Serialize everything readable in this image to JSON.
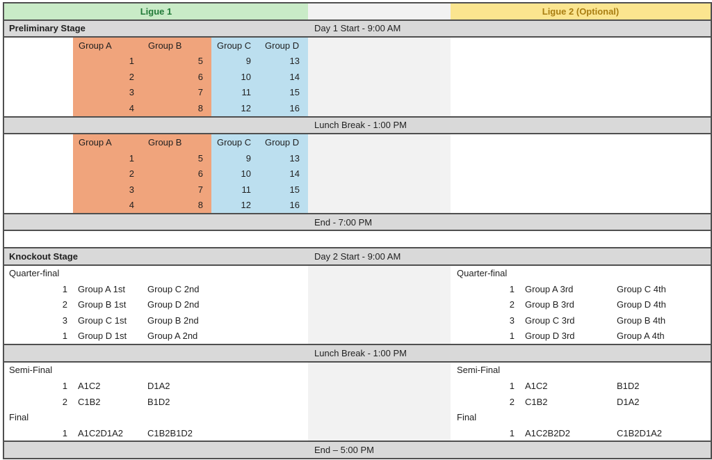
{
  "league_headers": {
    "ligue1": "Ligue 1",
    "ligue2": "Ligue 2 (Optional)"
  },
  "colors": {
    "ligue1_bg": "#C9EBC7",
    "ligue1_text": "#217A38",
    "ligue2_bg": "#FBE58F",
    "ligue2_text": "#A97E12",
    "group_ab_bg": "#F0A47C",
    "group_cd_bg": "#BCDFEF",
    "separator_row_bg": "#D9D9D9",
    "middle_band_bg": "#F2F2F2"
  },
  "schedule": {
    "day1": {
      "stage": "Preliminary Stage",
      "start": "Day 1 Start - 9:00 AM",
      "lunch": "Lunch Break - 1:00 PM",
      "end": "End - 7:00 PM",
      "groups": [
        "Group A",
        "Group B",
        "Group C",
        "Group D"
      ],
      "rows": [
        [
          "1",
          "5",
          "9",
          "13"
        ],
        [
          "2",
          "6",
          "10",
          "14"
        ],
        [
          "3",
          "7",
          "11",
          "15"
        ],
        [
          "4",
          "8",
          "12",
          "16"
        ]
      ]
    },
    "day2": {
      "stage": "Knockout Stage",
      "start": "Day 2 Start - 9:00 AM",
      "lunch": "Lunch Break - 1:00 PM",
      "end": "End – 5:00 PM",
      "ligue1": {
        "quarterfinal_label": "Quarter-final",
        "quarterfinals": [
          {
            "n": "1",
            "home": "Group A 1st",
            "away": "Group C 2nd"
          },
          {
            "n": "2",
            "home": "Group B 1st",
            "away": "Group D 2nd"
          },
          {
            "n": "3",
            "home": "Group C 1st",
            "away": "Group B 2nd"
          },
          {
            "n": "1",
            "home": "Group D 1st",
            "away": "Group A 2nd"
          }
        ],
        "semifinal_label": "Semi-Final",
        "semifinals": [
          {
            "n": "1",
            "home": "A1C2",
            "away": "D1A2"
          },
          {
            "n": "2",
            "home": "C1B2",
            "away": "B1D2"
          }
        ],
        "final_label": "Final",
        "finals": [
          {
            "n": "1",
            "home": "A1C2D1A2",
            "away": "C1B2B1D2"
          }
        ]
      },
      "ligue2": {
        "quarterfinal_label": "Quarter-final",
        "quarterfinals": [
          {
            "n": "1",
            "home": "Group A 3rd",
            "away": "Group C 4th"
          },
          {
            "n": "2",
            "home": "Group B 3rd",
            "away": "Group D 4th"
          },
          {
            "n": "3",
            "home": "Group C 3rd",
            "away": "Group B 4th"
          },
          {
            "n": "1",
            "home": "Group D 3rd",
            "away": "Group A 4th"
          }
        ],
        "semifinal_label": "Semi-Final",
        "semifinals": [
          {
            "n": "1",
            "home": "A1C2",
            "away": "B1D2"
          },
          {
            "n": "2",
            "home": "C1B2",
            "away": "D1A2"
          }
        ],
        "final_label": "Final",
        "finals": [
          {
            "n": "1",
            "home": "A1C2B2D2",
            "away": "C1B2D1A2"
          }
        ]
      }
    }
  }
}
